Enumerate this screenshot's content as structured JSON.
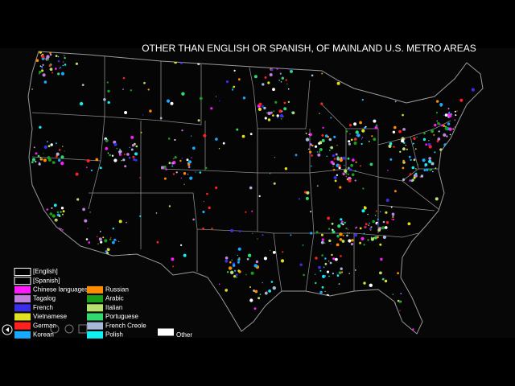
{
  "title": "OTHER THAN ENGLISH OR SPANISH, OF MAINLAND U.S. METRO AREAS",
  "legend": {
    "columns": [
      [
        {
          "label": "[English]",
          "color": "#000000"
        },
        {
          "label": "[Spanish]",
          "color": "#000000"
        },
        {
          "label": "Chinese languages",
          "color": "#ff1aff"
        },
        {
          "label": "Tagalog",
          "color": "#c080e0"
        },
        {
          "label": "French",
          "color": "#3a2ee8"
        },
        {
          "label": "Vietnamese",
          "color": "#e0e020"
        },
        {
          "label": "German",
          "color": "#ff2020"
        },
        {
          "label": "Korean",
          "color": "#1aa8ff"
        }
      ],
      [
        {
          "label": "Russian",
          "color": "#ff8c00"
        },
        {
          "label": "Arabic",
          "color": "#18a018"
        },
        {
          "label": "Italian",
          "color": "#b8e070"
        },
        {
          "label": "Portuguese",
          "color": "#30d870"
        },
        {
          "label": "French Creole",
          "color": "#a8b8d8"
        },
        {
          "label": "Polish",
          "color": "#10f0f0"
        }
      ]
    ],
    "other": {
      "label": "Other",
      "color": "#ffffff"
    }
  }
}
